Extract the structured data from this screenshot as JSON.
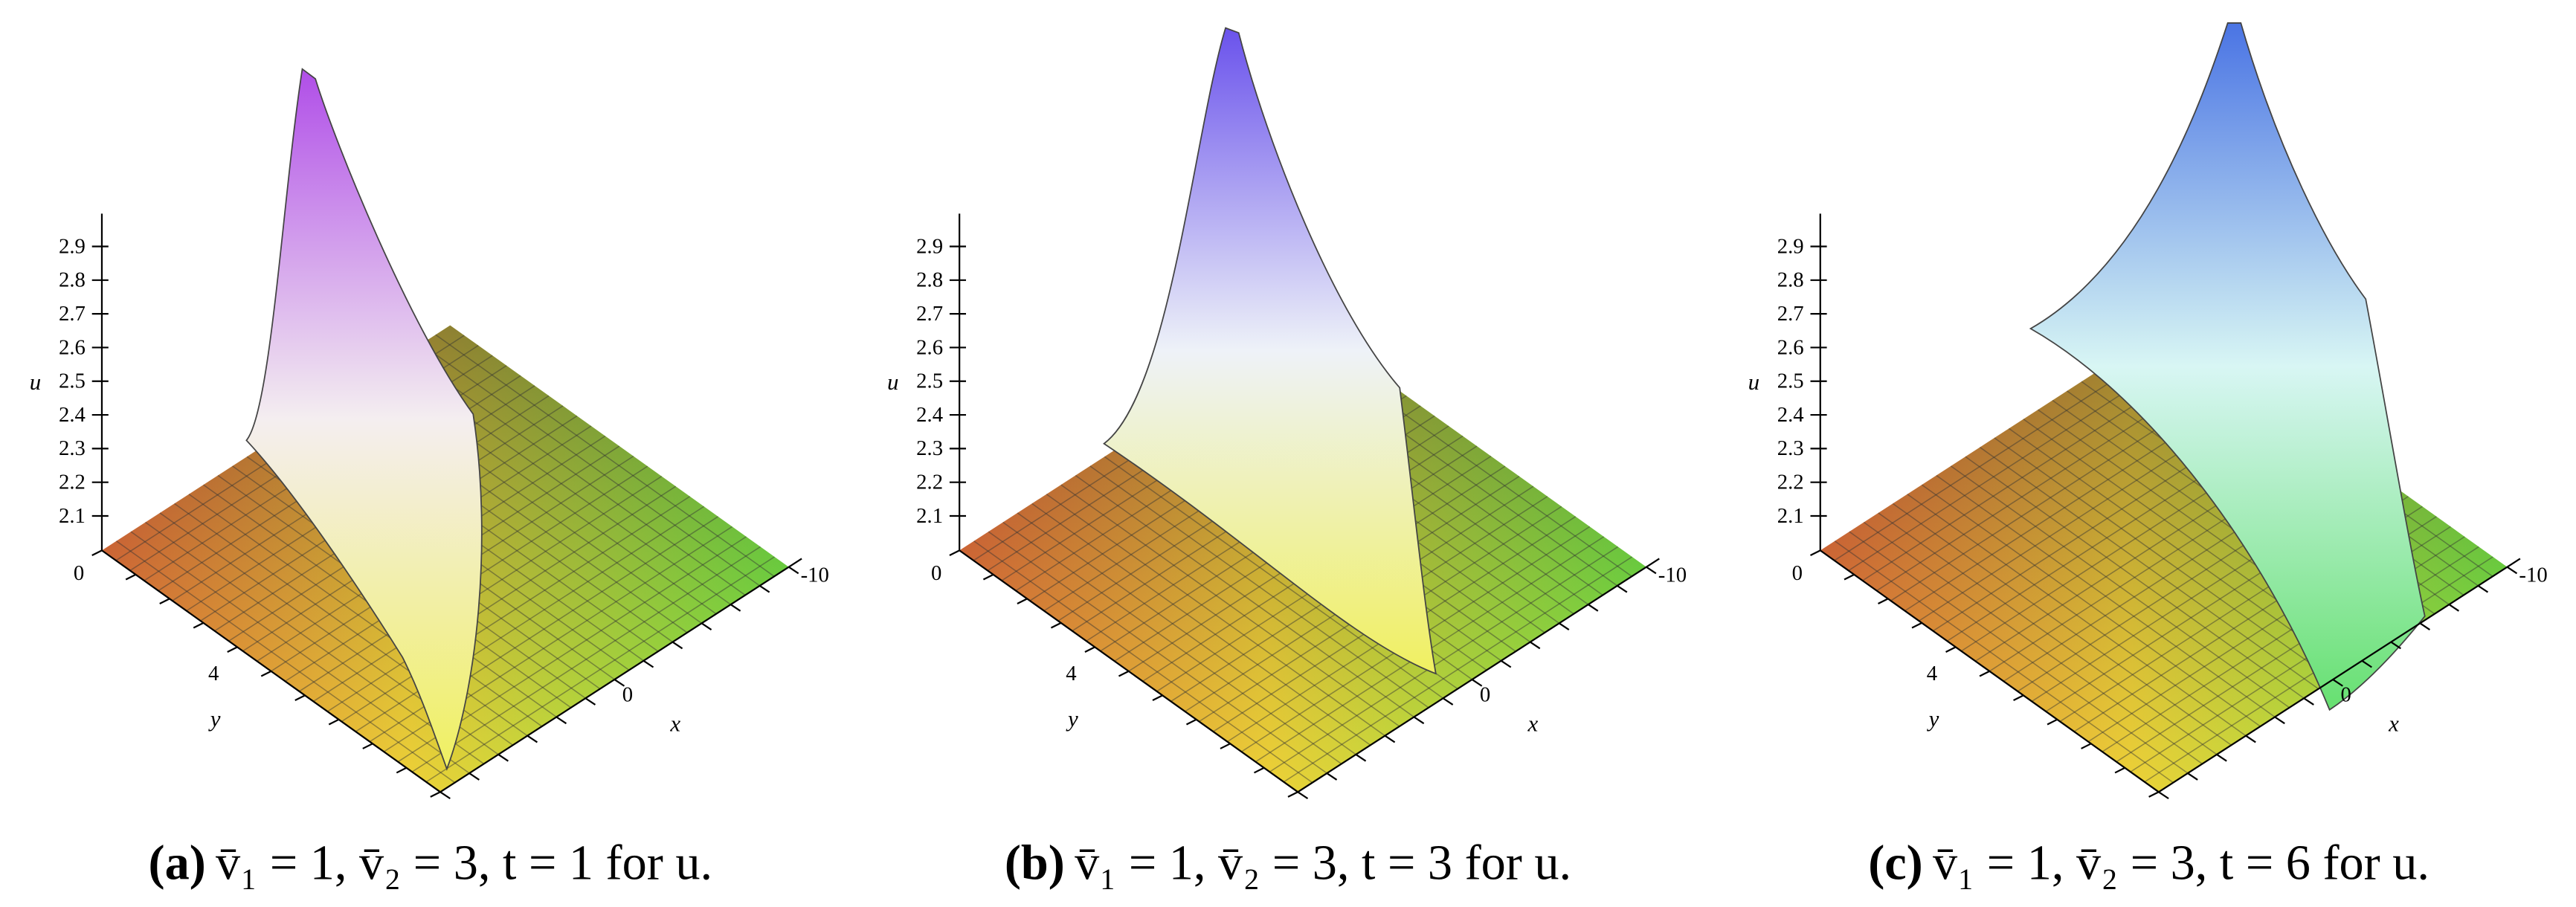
{
  "panels": [
    {
      "u_ticks": [
        "2.1",
        "2.2",
        "2.3",
        "2.4",
        "2.5",
        "2.6",
        "2.7",
        "2.8",
        "2.9"
      ],
      "u_label": "u",
      "y_label": "y",
      "x_label": "x",
      "y_ticks": [
        "0",
        "4"
      ],
      "x_ticks": [
        "0",
        "-10"
      ],
      "caption_label": "(a)",
      "caption_text": "v̄₁ = 1, v̄₂ = 3, t = 1 for u."
    },
    {
      "u_ticks": [
        "2.1",
        "2.2",
        "2.3",
        "2.4",
        "2.5",
        "2.6",
        "2.7",
        "2.8",
        "2.9"
      ],
      "u_label": "u",
      "y_label": "y",
      "x_label": "x",
      "y_ticks": [
        "0",
        "4"
      ],
      "x_ticks": [
        "0",
        "-10"
      ],
      "caption_label": "(b)",
      "caption_text": "v̄₁ = 1, v̄₂ = 3, t = 3 for u."
    },
    {
      "u_ticks": [
        "2.1",
        "2.2",
        "2.3",
        "2.4",
        "2.5",
        "2.6",
        "2.7",
        "2.8",
        "2.9"
      ],
      "u_label": "u",
      "y_label": "y",
      "x_label": "x",
      "y_ticks": [
        "0",
        "4"
      ],
      "x_ticks": [
        "0",
        "-10"
      ],
      "caption_label": "(c)",
      "caption_text": "v̄₁ = 1, v̄₂ = 3, t = 6 for u."
    }
  ]
}
